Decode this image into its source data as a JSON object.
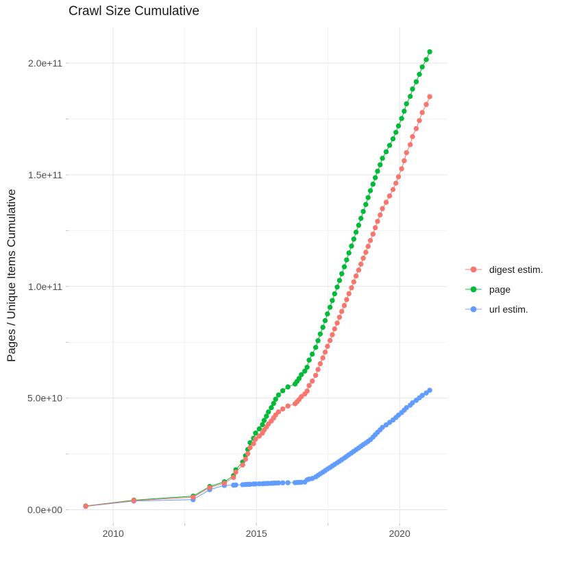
{
  "title": "Crawl Size Cumulative",
  "chart_data": {
    "type": "scatter",
    "title": "Crawl Size Cumulative",
    "xlabel": "",
    "ylabel": "Pages / Unique Items Cumulative",
    "legend_position": "right",
    "grid": true,
    "value_unit": "1e9 (values below are billions of pages / unique items)",
    "xlim": [
      2008.44,
      2021.67
    ],
    "ylim_billions": [
      -6,
      216
    ],
    "x_axis": {
      "major": [
        2010,
        2015,
        2020
      ],
      "minor": [
        2012.5,
        2017.5
      ],
      "labels": [
        "2010",
        "2015",
        "2020"
      ]
    },
    "y_axis": {
      "major": [
        0,
        50,
        100,
        150,
        200
      ],
      "minor": [
        25,
        75,
        125,
        175
      ],
      "labels": [
        "0.0e+00",
        "5.0e+10",
        "1.0e+11",
        "1.5e+11",
        "2.0e+11"
      ]
    },
    "x": [
      2009.04,
      2010.72,
      2012.79,
      2013.37,
      2013.88,
      2014.2,
      2014.28,
      2014.52,
      2014.62,
      2014.7,
      2014.78,
      2014.9,
      2014.97,
      2015.1,
      2015.21,
      2015.27,
      2015.35,
      2015.42,
      2015.52,
      2015.6,
      2015.67,
      2015.77,
      2015.92,
      2016.1,
      2016.35,
      2016.42,
      2016.49,
      2016.57,
      2016.69,
      2016.77,
      2016.84,
      2016.95,
      2017.07,
      2017.15,
      2017.23,
      2017.32,
      2017.4,
      2017.48,
      2017.57,
      2017.65,
      2017.73,
      2017.82,
      2017.9,
      2017.98,
      2018.07,
      2018.15,
      2018.23,
      2018.32,
      2018.4,
      2018.48,
      2018.57,
      2018.65,
      2018.73,
      2018.82,
      2018.9,
      2018.98,
      2019.07,
      2019.15,
      2019.23,
      2019.32,
      2019.4,
      2019.53,
      2019.65,
      2019.77,
      2019.87,
      2019.96,
      2020.07,
      2020.16,
      2020.24,
      2020.37,
      2020.45,
      2020.58,
      2020.69,
      2020.79,
      2020.93,
      2021.05
    ],
    "series": [
      {
        "name": "digest estim.",
        "color": "#F8766D",
        "values": [
          1.6,
          4.1,
          5.6,
          9.9,
          11.9,
          14.45,
          16.85,
          20.05,
          22.6,
          25.1,
          27.8,
          29.6,
          31.65,
          33.0,
          34.35,
          35.7,
          37.05,
          38.4,
          39.75,
          41.1,
          42.45,
          43.8,
          45.15,
          46.45,
          47.45,
          48.4,
          49.35,
          50.65,
          51.85,
          53.15,
          55.6,
          57.6,
          60.2,
          62.8,
          65.4,
          68.0,
          70.6,
          73.2,
          75.8,
          78.4,
          81.0,
          83.6,
          86.2,
          88.8,
          91.45,
          94.1,
          96.75,
          99.4,
          102.05,
          104.7,
          107.35,
          110.0,
          112.65,
          115.3,
          117.95,
          120.6,
          123.45,
          126.3,
          129.15,
          132.0,
          134.85,
          137.7,
          140.55,
          143.4,
          146.25,
          149.1,
          152.7,
          156.3,
          159.9,
          163.5,
          167.1,
          170.7,
          174.3,
          177.9,
          181.5,
          185.0
        ]
      },
      {
        "name": "page",
        "color": "#00BA38",
        "values": [
          1.7,
          4.3,
          6.1,
          10.4,
          12.5,
          15.3,
          17.9,
          21.4,
          24.2,
          27.0,
          30.0,
          32.0,
          34.3,
          36.2,
          38.1,
          40.0,
          41.9,
          43.8,
          45.7,
          47.6,
          49.5,
          51.4,
          53.3,
          55.0,
          56.3,
          57.5,
          58.8,
          60.5,
          62.1,
          63.8,
          67.0,
          69.7,
          72.7,
          75.7,
          78.7,
          81.7,
          84.7,
          87.7,
          90.7,
          93.7,
          96.7,
          99.7,
          102.7,
          105.7,
          108.8,
          111.9,
          115.0,
          118.1,
          121.2,
          124.3,
          127.4,
          130.5,
          133.6,
          136.7,
          139.8,
          142.9,
          145.8,
          148.7,
          151.6,
          154.5,
          157.4,
          160.3,
          163.2,
          166.1,
          169.0,
          171.9,
          175.2,
          178.5,
          181.8,
          185.1,
          188.4,
          191.7,
          195.0,
          198.3,
          201.6,
          205.1
        ]
      },
      {
        "name": "url estim.",
        "color": "#619CFF",
        "values": [
          1.5,
          3.9,
          4.5,
          9.0,
          10.9,
          11.0,
          11.1,
          11.2,
          11.3,
          11.35,
          11.4,
          11.5,
          11.55,
          11.6,
          11.65,
          11.7,
          11.75,
          11.8,
          11.85,
          11.9,
          11.95,
          12.0,
          12.05,
          12.1,
          12.15,
          12.2,
          12.25,
          12.3,
          12.4,
          13.4,
          13.7,
          14.0,
          14.7,
          15.4,
          16.1,
          16.8,
          17.5,
          18.2,
          18.9,
          19.6,
          20.3,
          21.0,
          21.7,
          22.4,
          23.15,
          23.9,
          24.65,
          25.4,
          26.15,
          26.9,
          27.65,
          28.4,
          29.15,
          29.9,
          30.65,
          31.4,
          32.5,
          33.6,
          34.7,
          35.8,
          36.9,
          38.0,
          39.1,
          40.2,
          41.3,
          42.4,
          43.5,
          44.6,
          45.7,
          46.8,
          47.9,
          49.0,
          50.1,
          51.2,
          52.3,
          53.5
        ]
      }
    ],
    "style": {
      "grid_major": "#e4e4e4",
      "grid_minor": "#f2f2f2",
      "tick_color": "#c2c2c2",
      "point_radius": 3.7,
      "line_width": 1
    }
  }
}
